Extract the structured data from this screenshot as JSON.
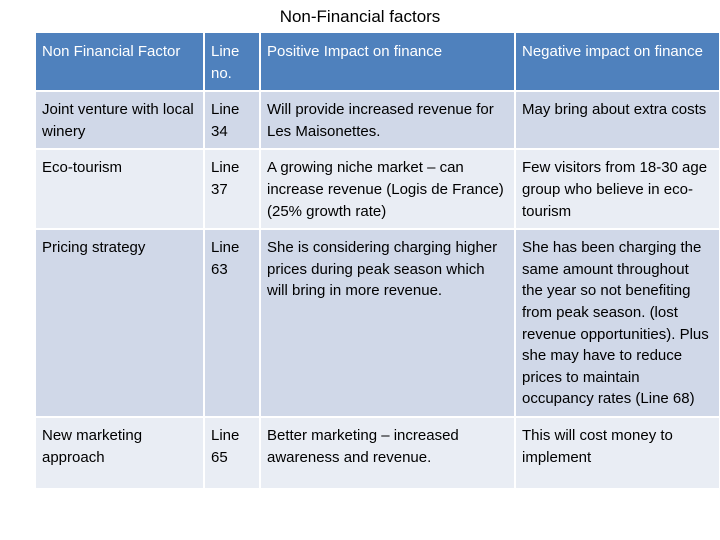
{
  "title": "Non-Financial factors",
  "headers": [
    "Non Financial Factor",
    "Line no.",
    "Positive Impact on finance",
    "Negative impact on finance"
  ],
  "rows": [
    {
      "factor": "Joint venture with local winery",
      "line": "Line 34",
      "positive": "Will provide increased revenue for Les Maisonettes.",
      "negative": "May bring about extra costs"
    },
    {
      "factor": "Eco-tourism",
      "line": "Line 37",
      "positive": "A growing niche market – can increase revenue (Logis de France) (25% growth rate)",
      "negative": "Few visitors from 18-30 age group who believe in eco-tourism"
    },
    {
      "factor": "Pricing strategy",
      "line": "Line 63",
      "positive": "She is considering charging higher prices during peak season which will bring in more revenue.",
      "negative": "She has been charging the same amount throughout the year so not benefiting from peak season. (lost revenue opportunities). Plus she may have to reduce prices to maintain occupancy rates (Line 68)"
    },
    {
      "factor": "New marketing approach",
      "line": "Line 65",
      "positive": "Better marketing – increased awareness and revenue.",
      "negative": "This will cost money to implement"
    }
  ],
  "colors": {
    "header_bg": "#4f81bd",
    "row_light": "#e9edf4",
    "row_dark": "#d0d8e8"
  }
}
